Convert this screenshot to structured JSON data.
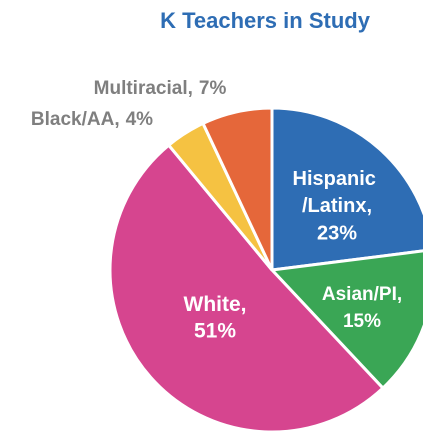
{
  "chart_data": {
    "type": "pie",
    "title": "K Teachers in Study",
    "categories": [
      "Hispanic /Latinx,",
      "Asian/PI,",
      "White,",
      "Black/AA,",
      "Multiracial,"
    ],
    "values": [
      23,
      15,
      51,
      4,
      7
    ],
    "value_labels": [
      "23%",
      "15%",
      "51%",
      "4%",
      "7%"
    ],
    "colors": [
      "#2e6db4",
      "#3aa655",
      "#d6458f",
      "#f5c242",
      "#e5673a"
    ]
  }
}
